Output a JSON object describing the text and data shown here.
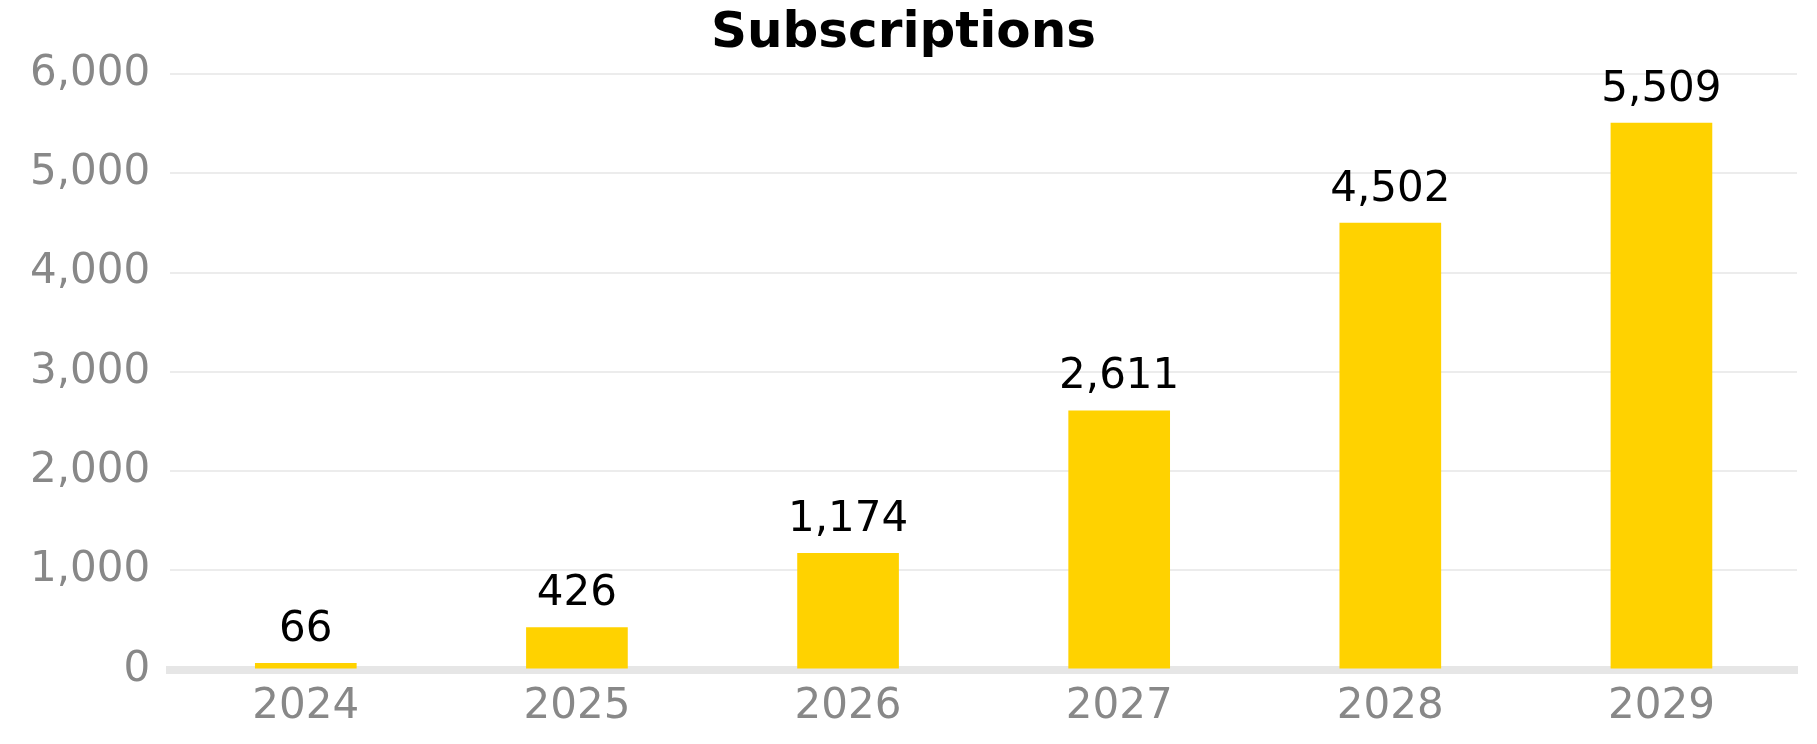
{
  "chart_data": {
    "type": "bar",
    "title": "Subscriptions",
    "categories": [
      "2024",
      "2025",
      "2026",
      "2027",
      "2028",
      "2029"
    ],
    "values": [
      66,
      426,
      1174,
      2611,
      4502,
      5509
    ],
    "color": "#ffd200",
    "value_labels": [
      "66",
      "426",
      "1,174",
      "2,611",
      "4,502",
      "5,509"
    ],
    "ylim": [
      0,
      6000
    ],
    "yticks": [
      0,
      {
        "value": 1000,
        "label": "1,000"
      },
      {
        "value": 2000,
        "label": "2,000"
      },
      {
        "value": 3000,
        "label": "3,000"
      },
      {
        "value": 4000,
        "label": "4,000"
      },
      {
        "value": 5000,
        "label": "5,000"
      },
      {
        "value": 6000,
        "label": "6,000"
      }
    ],
    "grid": "y"
  }
}
